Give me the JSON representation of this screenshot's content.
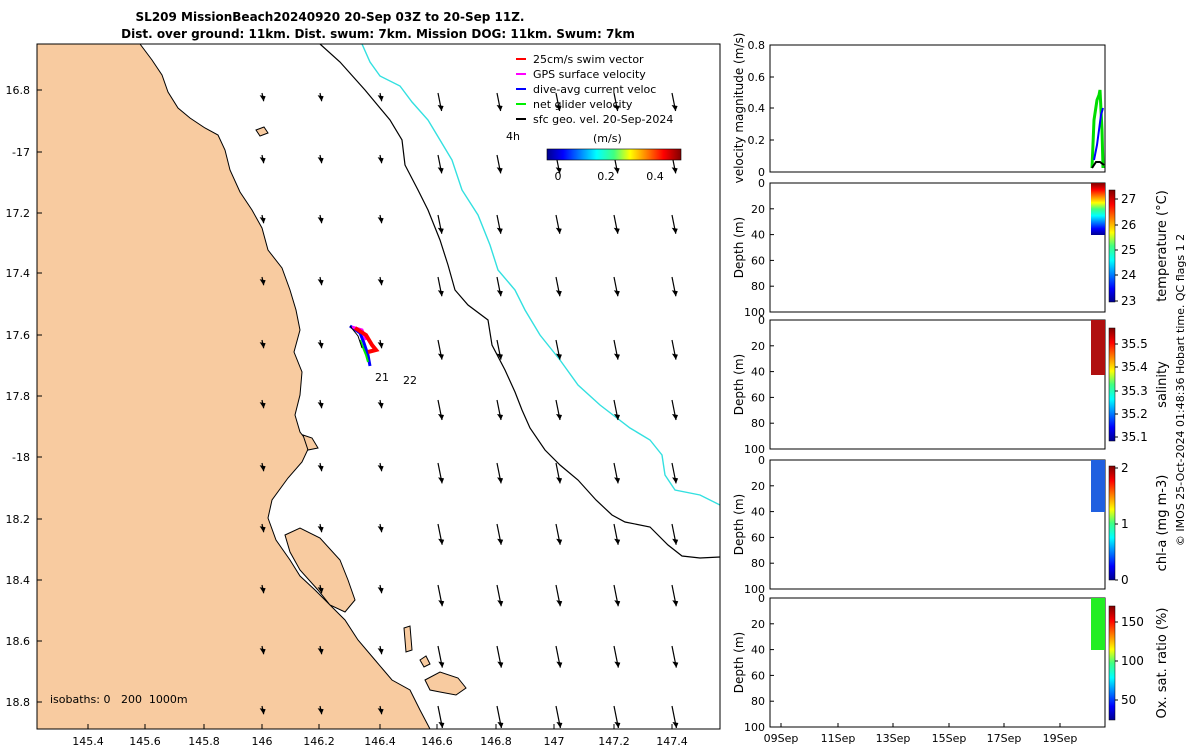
{
  "title": {
    "line1": "SL209 MissionBeach20240920 20-Sep 03Z to 20-Sep 11Z.",
    "line2": "Dist. over ground: 11km. Dist. swum: 7km. Mission DOG: 11km. Swum: 7km"
  },
  "map": {
    "lon_ticks": [
      "145.4",
      "145.6",
      "145.8",
      "146",
      "146.2",
      "146.4",
      "146.6",
      "146.8",
      "147",
      "147.2",
      "147.4"
    ],
    "lat_ticks": [
      "16.8",
      "-17",
      "17.2",
      "17.4",
      "17.6",
      "17.8",
      "-18",
      "18.2",
      "18.4",
      "18.6",
      "18.8"
    ],
    "legend": [
      {
        "label": "25cm/s swim vector",
        "color": "#ff0000"
      },
      {
        "label": "GPS surface velocity",
        "color": "#ff00ff"
      },
      {
        "label": "dive-avg current veloc",
        "color": "#0000ff"
      },
      {
        "label": "net glider velocity",
        "color": "#00ee00"
      },
      {
        "label": "sfc geo. vel. 20-Sep-2024",
        "color": "#000000"
      }
    ],
    "time_label": "4h",
    "colorbar": {
      "title": "(m/s)",
      "ticks": [
        "0",
        "0.2",
        "0.4"
      ]
    },
    "track_labels": [
      "21",
      "22"
    ],
    "isobaths": "isobaths: 0   200  1000m",
    "colors": {
      "land": "#f8cba0",
      "isobath_200": "#000000",
      "isobath_1000": "#33e0e0"
    }
  },
  "panels": {
    "velocity": {
      "ylabel": "velocity magnitude (m/s)",
      "ticks": [
        "0",
        "0.2",
        "0.4",
        "0.6",
        "0.8"
      ]
    },
    "depth_ticks": [
      "0",
      "20",
      "40",
      "60",
      "80",
      "100"
    ],
    "depth_ylabel": "Depth (m)",
    "temperature": {
      "label": "temperature (°C)",
      "ticks": [
        "23",
        "24",
        "25",
        "26",
        "27"
      ]
    },
    "salinity": {
      "label": "salinity",
      "ticks": [
        "35.1",
        "35.2",
        "35.3",
        "35.4",
        "35.5"
      ]
    },
    "chla": {
      "label": "chl-a (mg m-3)",
      "ticks": [
        "0",
        "1",
        "2"
      ]
    },
    "oxygen": {
      "label": "Ox. sat. ratio (%)",
      "ticks": [
        "50",
        "100",
        "150"
      ]
    },
    "time_ticks": [
      "09Sep",
      "11Sep",
      "13Sep",
      "15Sep",
      "17Sep",
      "19Sep"
    ]
  },
  "footer": "© IMOS 25-Oct-2024 01:48:36 Hobart time. QC flags 1  2"
}
